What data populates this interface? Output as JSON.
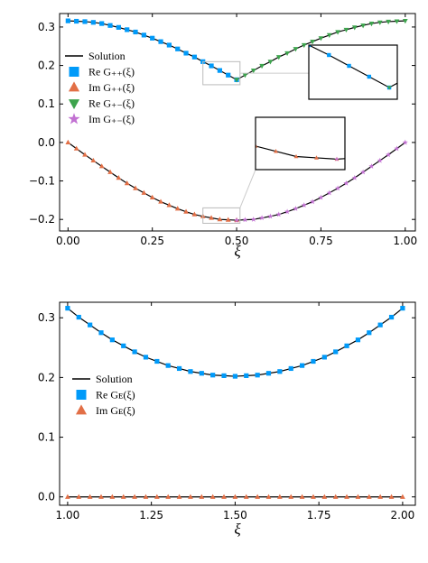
{
  "chart_data": [
    {
      "type": "scatter",
      "xlabel": "ξ",
      "xlim": [
        -0.025,
        1.03
      ],
      "ylim": [
        -0.23,
        0.335
      ],
      "xticks": [
        {
          "value": 0,
          "label": "0.00"
        },
        {
          "value": 0.25,
          "label": "0.25"
        },
        {
          "value": 0.5,
          "label": "0.50"
        },
        {
          "value": 0.75,
          "label": "0.75"
        },
        {
          "value": 1,
          "label": "1.00"
        }
      ],
      "yticks": [
        {
          "value": -0.2,
          "label": "−0.2"
        },
        {
          "value": -0.1,
          "label": "−0.1"
        },
        {
          "value": 0,
          "label": "0.0"
        },
        0.1,
        0.2,
        0.3
      ],
      "grid": false,
      "legend": "left",
      "series": [
        {
          "name": "Solution",
          "color": "#000000",
          "marker": "line",
          "x": [
            0,
            0.025,
            0.05,
            0.075,
            0.1,
            0.125,
            0.15,
            0.175,
            0.2,
            0.225,
            0.25,
            0.275,
            0.3,
            0.325,
            0.35,
            0.375,
            0.4,
            0.425,
            0.45,
            0.475,
            0.5,
            0.525,
            0.55,
            0.575,
            0.6,
            0.625,
            0.65,
            0.675,
            0.7,
            0.725,
            0.75,
            0.775,
            0.8,
            0.825,
            0.85,
            0.875,
            0.9,
            0.925,
            0.95,
            0.975,
            1
          ],
          "values": [
            0.316,
            0.315,
            0.314,
            0.312,
            0.309,
            0.304,
            0.299,
            0.293,
            0.287,
            0.279,
            0.271,
            0.262,
            0.253,
            0.243,
            0.232,
            0.222,
            0.21,
            0.199,
            0.187,
            0.175,
            0.163,
            0.175,
            0.187,
            0.199,
            0.21,
            0.222,
            0.232,
            0.243,
            0.253,
            0.262,
            0.271,
            0.279,
            0.287,
            0.293,
            0.299,
            0.304,
            0.309,
            0.312,
            0.314,
            0.315,
            0.316
          ]
        },
        {
          "color": "#000000",
          "marker": "line",
          "x": [
            0,
            0.025,
            0.05,
            0.075,
            0.1,
            0.125,
            0.15,
            0.175,
            0.2,
            0.225,
            0.25,
            0.275,
            0.3,
            0.325,
            0.35,
            0.375,
            0.4,
            0.425,
            0.45,
            0.475,
            0.5,
            0.525,
            0.55,
            0.575,
            0.6,
            0.625,
            0.65,
            0.675,
            0.7,
            0.725,
            0.75,
            0.775,
            0.8,
            0.825,
            0.85,
            0.875,
            0.9,
            0.925,
            0.95,
            0.975,
            1
          ],
          "values": [
            0,
            -0.016,
            -0.032,
            -0.047,
            -0.062,
            -0.077,
            -0.092,
            -0.106,
            -0.119,
            -0.131,
            -0.143,
            -0.154,
            -0.163,
            -0.172,
            -0.18,
            -0.187,
            -0.192,
            -0.196,
            -0.2,
            -0.201,
            -0.202,
            -0.201,
            -0.2,
            -0.196,
            -0.192,
            -0.187,
            -0.18,
            -0.172,
            -0.163,
            -0.154,
            -0.143,
            -0.131,
            -0.119,
            -0.106,
            -0.092,
            -0.077,
            -0.062,
            -0.047,
            -0.032,
            -0.016,
            0
          ]
        },
        {
          "name": "Re G₊₊(ξ)",
          "color": "#009af9",
          "marker": "square",
          "x": [
            0,
            0.025,
            0.05,
            0.075,
            0.1,
            0.125,
            0.15,
            0.175,
            0.2,
            0.225,
            0.25,
            0.275,
            0.3,
            0.325,
            0.35,
            0.375,
            0.4,
            0.425,
            0.45,
            0.475,
            0.5
          ],
          "values": [
            0.316,
            0.315,
            0.314,
            0.312,
            0.309,
            0.304,
            0.299,
            0.293,
            0.287,
            0.279,
            0.271,
            0.262,
            0.253,
            0.243,
            0.232,
            0.222,
            0.21,
            0.199,
            0.187,
            0.175,
            0.163
          ]
        },
        {
          "name": "Im G₊₊(ξ)",
          "color": "#e26f46",
          "marker": "triangle-up",
          "x": [
            0,
            0.025,
            0.05,
            0.075,
            0.1,
            0.125,
            0.15,
            0.175,
            0.2,
            0.225,
            0.25,
            0.275,
            0.3,
            0.325,
            0.35,
            0.375,
            0.4,
            0.425,
            0.45,
            0.475,
            0.5
          ],
          "values": [
            0,
            -0.016,
            -0.032,
            -0.047,
            -0.062,
            -0.077,
            -0.092,
            -0.106,
            -0.119,
            -0.131,
            -0.143,
            -0.154,
            -0.163,
            -0.172,
            -0.18,
            -0.187,
            -0.192,
            -0.196,
            -0.2,
            -0.201,
            -0.202
          ]
        },
        {
          "name": "Re G₊₋(ξ)",
          "color": "#3da44d",
          "marker": "triangle-down",
          "x": [
            0.5,
            0.525,
            0.55,
            0.575,
            0.6,
            0.625,
            0.65,
            0.675,
            0.7,
            0.725,
            0.75,
            0.775,
            0.8,
            0.825,
            0.85,
            0.875,
            0.9,
            0.925,
            0.95,
            0.975,
            1
          ],
          "values": [
            0.163,
            0.175,
            0.187,
            0.199,
            0.21,
            0.222,
            0.232,
            0.243,
            0.253,
            0.262,
            0.271,
            0.279,
            0.287,
            0.293,
            0.299,
            0.304,
            0.309,
            0.312,
            0.314,
            0.315,
            0.316
          ]
        },
        {
          "name": "Im G₊₋(ξ)",
          "color": "#c271d2",
          "marker": "star",
          "x": [
            0.5,
            0.525,
            0.55,
            0.575,
            0.6,
            0.625,
            0.65,
            0.675,
            0.7,
            0.725,
            0.75,
            0.775,
            0.8,
            0.825,
            0.85,
            0.875,
            0.9,
            0.925,
            0.95,
            0.975,
            1
          ],
          "values": [
            -0.202,
            -0.201,
            -0.2,
            -0.196,
            -0.192,
            -0.187,
            -0.18,
            -0.172,
            -0.163,
            -0.154,
            -0.143,
            -0.131,
            -0.119,
            -0.106,
            -0.092,
            -0.077,
            -0.062,
            -0.047,
            -0.032,
            -0.016,
            0
          ]
        }
      ],
      "insets": [
        {
          "xlim": [
            0.4,
            0.51
          ],
          "ylim": [
            0.15,
            0.21
          ]
        },
        {
          "xlim": [
            0.4,
            0.51
          ],
          "ylim": [
            -0.21,
            -0.17
          ]
        }
      ]
    },
    {
      "type": "scatter",
      "xlabel": "ξ",
      "xlim": [
        0.976,
        2.038
      ],
      "ylim": [
        -0.014,
        0.326
      ],
      "xticks": [
        {
          "value": 1,
          "label": "1.00"
        },
        {
          "value": 1.25,
          "label": "1.25"
        },
        {
          "value": 1.5,
          "label": "1.50"
        },
        {
          "value": 1.75,
          "label": "1.75"
        },
        {
          "value": 2,
          "label": "2.00"
        }
      ],
      "yticks": [
        {
          "value": 0,
          "label": "0.0"
        },
        0.1,
        0.2,
        0.3
      ],
      "grid": false,
      "legend": "left",
      "series": [
        {
          "name": "Solution",
          "color": "#000000",
          "marker": "line",
          "x": [
            1,
            1.0333,
            1.0667,
            1.1,
            1.1333,
            1.1667,
            1.2,
            1.2333,
            1.2667,
            1.3,
            1.3333,
            1.3667,
            1.4,
            1.4333,
            1.4667,
            1.5,
            1.5333,
            1.5667,
            1.6,
            1.6333,
            1.6667,
            1.7,
            1.7333,
            1.7667,
            1.8,
            1.8333,
            1.8667,
            1.9,
            1.9333,
            1.9667,
            2
          ],
          "values": [
            0.316,
            0.301,
            0.288,
            0.275,
            0.263,
            0.253,
            0.243,
            0.234,
            0.227,
            0.22,
            0.215,
            0.21,
            0.207,
            0.204,
            0.203,
            0.202,
            0.203,
            0.204,
            0.207,
            0.21,
            0.215,
            0.22,
            0.227,
            0.234,
            0.243,
            0.253,
            0.263,
            0.275,
            0.288,
            0.301,
            0.316
          ]
        },
        {
          "color": "#000000",
          "marker": "line",
          "x": [
            1,
            2
          ],
          "values": [
            0,
            0
          ]
        },
        {
          "name": "Re Gᴇ(ξ)",
          "color": "#009af9",
          "marker": "square",
          "x": [
            1,
            1.0333,
            1.0667,
            1.1,
            1.1333,
            1.1667,
            1.2,
            1.2333,
            1.2667,
            1.3,
            1.3333,
            1.3667,
            1.4,
            1.4333,
            1.4667,
            1.5,
            1.5333,
            1.5667,
            1.6,
            1.6333,
            1.6667,
            1.7,
            1.7333,
            1.7667,
            1.8,
            1.8333,
            1.8667,
            1.9,
            1.9333,
            1.9667,
            2
          ],
          "values": [
            0.316,
            0.301,
            0.288,
            0.275,
            0.263,
            0.253,
            0.243,
            0.234,
            0.227,
            0.22,
            0.215,
            0.21,
            0.207,
            0.204,
            0.203,
            0.202,
            0.203,
            0.204,
            0.207,
            0.21,
            0.215,
            0.22,
            0.227,
            0.234,
            0.243,
            0.253,
            0.263,
            0.275,
            0.288,
            0.301,
            0.316
          ]
        },
        {
          "name": "Im Gᴇ(ξ)",
          "color": "#e26f46",
          "marker": "triangle-up",
          "x": [
            1,
            1.0333,
            1.0667,
            1.1,
            1.1333,
            1.1667,
            1.2,
            1.2333,
            1.2667,
            1.3,
            1.3333,
            1.3667,
            1.4,
            1.4333,
            1.4667,
            1.5,
            1.5333,
            1.5667,
            1.6,
            1.6333,
            1.6667,
            1.7,
            1.7333,
            1.7667,
            1.8,
            1.8333,
            1.8667,
            1.9,
            1.9333,
            1.9667,
            2
          ],
          "values": [
            0,
            0,
            0,
            0,
            0,
            0,
            0,
            0,
            0,
            0,
            0,
            0,
            0,
            0,
            0,
            0,
            0,
            0,
            0,
            0,
            0,
            0,
            0,
            0,
            0,
            0,
            0,
            0,
            0,
            0,
            0
          ]
        }
      ]
    }
  ]
}
